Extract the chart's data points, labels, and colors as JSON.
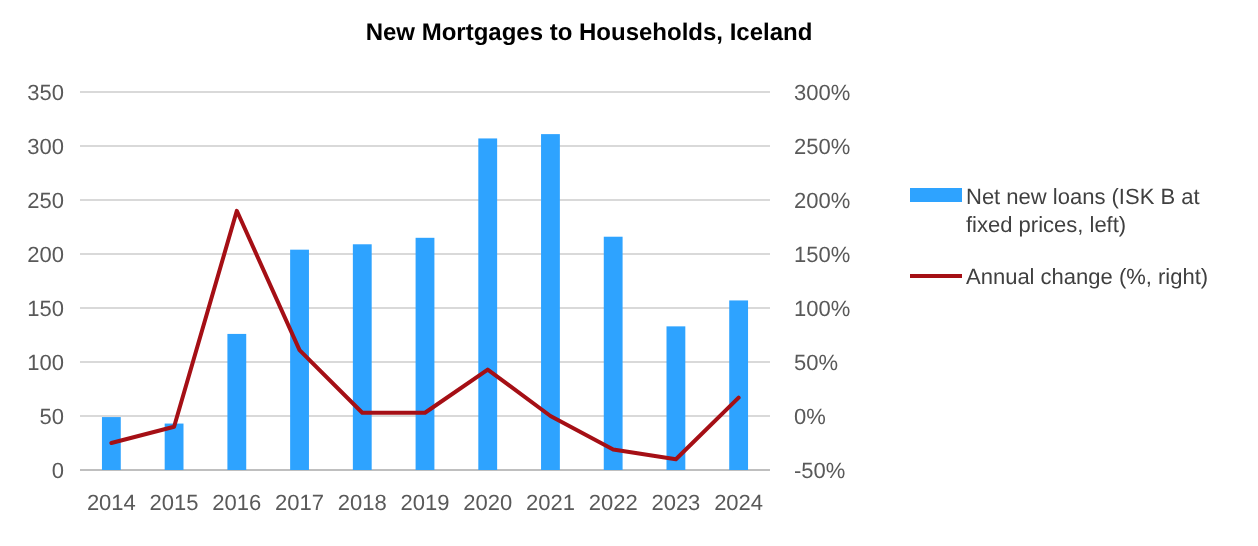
{
  "chart_data": {
    "type": "bar",
    "title": "New Mortgages to Households, Iceland",
    "categories": [
      "2014",
      "2015",
      "2016",
      "2017",
      "2018",
      "2019",
      "2020",
      "2021",
      "2022",
      "2023",
      "2024"
    ],
    "series": [
      {
        "name": "Net new loans (ISK B at fixed prices, left)",
        "color": "#2ea3ff",
        "values": [
          49,
          43,
          126,
          204,
          209,
          215,
          307,
          311,
          216,
          133,
          157
        ]
      },
      {
        "name": "Annual change (%, right)",
        "type": "line",
        "axis": "y2",
        "color": "#a50f15",
        "values": [
          -25,
          -10,
          190,
          61,
          3,
          3,
          43,
          0,
          -31,
          -40,
          17
        ]
      }
    ],
    "ylim": [
      0,
      350
    ],
    "yticks": [
      0,
      50,
      100,
      150,
      200,
      250,
      300,
      350
    ],
    "y2lim": [
      -50,
      300
    ],
    "y2ticks": [
      {
        "value": -50,
        "label": "-50%"
      },
      {
        "value": 0,
        "label": "0%"
      },
      {
        "value": 50,
        "label": "50%"
      },
      {
        "value": 100,
        "label": "100%"
      },
      {
        "value": 150,
        "label": "150%"
      },
      {
        "value": 200,
        "label": "200%"
      },
      {
        "value": 250,
        "label": "250%"
      },
      {
        "value": 300,
        "label": "300%"
      }
    ],
    "grid": "y",
    "legend": "right",
    "marker": "none",
    "line_style": "solid"
  }
}
